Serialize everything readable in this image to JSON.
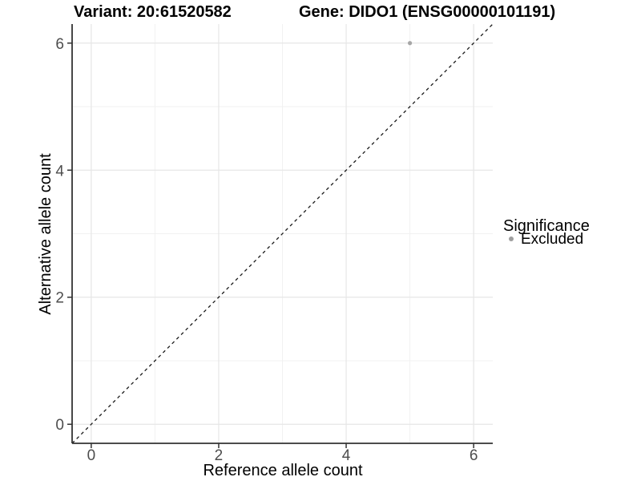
{
  "title": {
    "variant": "Variant: 20:61520582",
    "gene": "Gene: DIDO1 (ENSG00000101191)"
  },
  "legend": {
    "title": "Significance",
    "items": [
      {
        "label": "Excluded",
        "color": "#9e9e9e",
        "shape": "circle"
      }
    ]
  },
  "chart_data": {
    "type": "scatter",
    "title_left": "Variant: 20:61520582",
    "title_right": "Gene: DIDO1 (ENSG00000101191)",
    "xlabel": "Reference allele count",
    "ylabel": "Alternative allele count",
    "xlim": [
      -0.3,
      6.3
    ],
    "ylim": [
      -0.3,
      6.3
    ],
    "x_ticks": [
      0,
      2,
      4,
      6
    ],
    "y_ticks": [
      0,
      2,
      4,
      6
    ],
    "x_minor_ticks": [
      1,
      3,
      5
    ],
    "y_minor_ticks": [
      1,
      3,
      5
    ],
    "grid": true,
    "legend_position": "right",
    "series": [
      {
        "name": "Excluded",
        "color": "#a6a6a6",
        "points": [
          {
            "x": 5,
            "y": 6
          }
        ]
      }
    ],
    "reference_line": {
      "equation": "y = x",
      "style": "dashed",
      "color": "#1a1a1a",
      "from": [
        -0.3,
        -0.3
      ],
      "to": [
        6.3,
        6.3
      ]
    },
    "colors": {
      "background": "#ffffff",
      "grid_major": "#e6e6e6",
      "grid_minor": "#f1f1f1",
      "axis_line": "#333333",
      "tick_label": "#4d4d4d",
      "point": "#a6a6a6",
      "legend_swatch": "#9e9e9e"
    }
  }
}
